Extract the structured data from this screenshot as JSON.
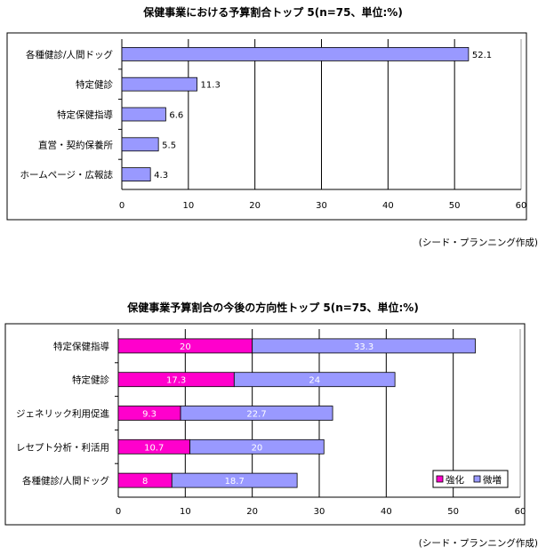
{
  "chart_data": [
    {
      "type": "bar",
      "orientation": "horizontal",
      "title": "保健事業における予算割合トップ 5(n=75、単位:%)",
      "categories": [
        "各種健診/人間ドッグ",
        "特定健診",
        "特定保健指導",
        "直営・契約保養所",
        "ホームページ・広報誌"
      ],
      "values": [
        52.1,
        11.3,
        6.6,
        5.5,
        4.3
      ],
      "xlim": [
        0,
        60
      ],
      "xticks": [
        "0",
        "10",
        "20",
        "30",
        "40",
        "50",
        "60"
      ],
      "grid": true,
      "color": "#9999ff",
      "source": "(シード・プランニング作成)"
    },
    {
      "type": "bar",
      "orientation": "horizontal",
      "stacked": true,
      "title": "保健事業予算割合の今後の方向性トップ 5(n=75、単位:%)",
      "categories": [
        "特定保健指導",
        "特定健診",
        "ジェネリック利用促進",
        "レセプト分析・利活用",
        "各種健診/人間ドッグ"
      ],
      "series": [
        {
          "name": "強化",
          "values": [
            20,
            17.3,
            9.3,
            10.7,
            8
          ],
          "color": "#ff00cc"
        },
        {
          "name": "微増",
          "values": [
            33.3,
            24,
            22.7,
            20,
            18.7
          ],
          "color": "#9999ff"
        }
      ],
      "xlim": [
        0,
        60
      ],
      "xticks": [
        "0",
        "10",
        "20",
        "30",
        "40",
        "50",
        "60"
      ],
      "grid": true,
      "legend": "bottom-right",
      "source": "(シード・プランニング作成)"
    }
  ]
}
